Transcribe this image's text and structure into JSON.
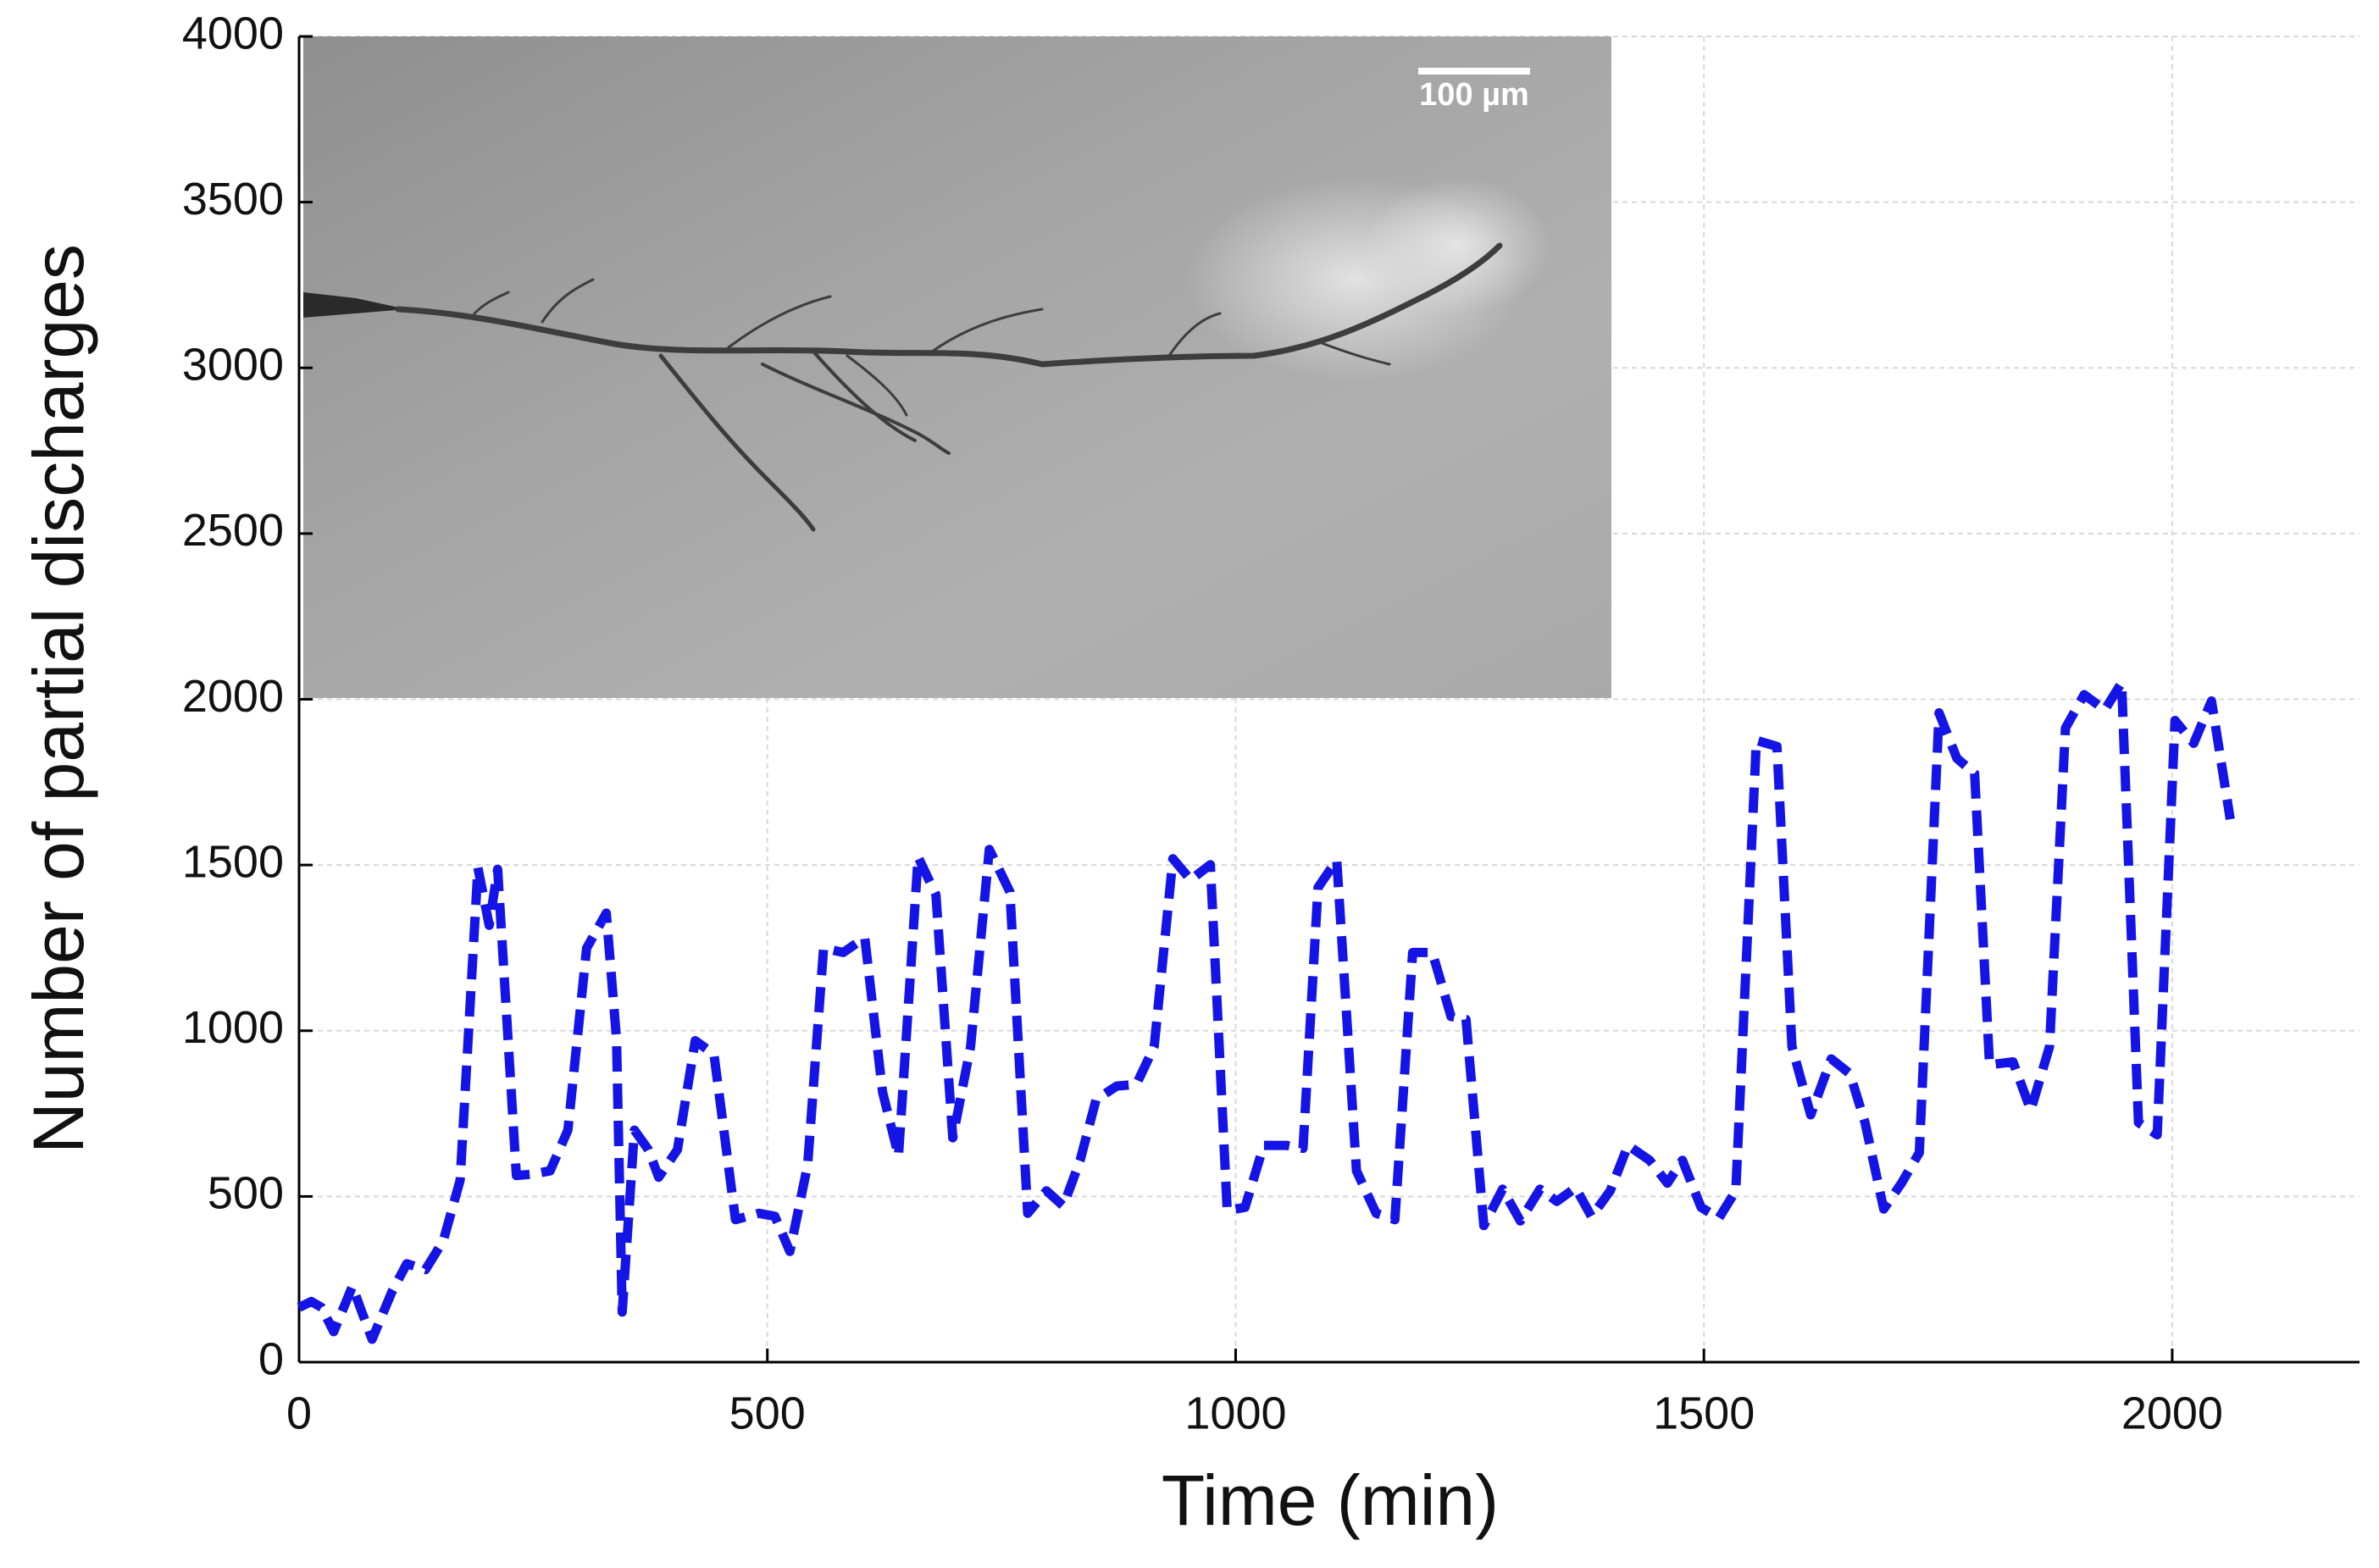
{
  "chart_data": {
    "type": "line",
    "x_label": "Time (min)",
    "y_label": "Number of partial discharges",
    "inset_scale_label": "100 µm",
    "color": "#1414e6",
    "line_style": "dashed",
    "grid": true,
    "xlim": [
      0,
      2200
    ],
    "ylim": [
      0,
      4000
    ],
    "xticks": [
      0,
      500,
      1000,
      1500,
      2000
    ],
    "yticks": [
      0,
      500,
      1000,
      1500,
      2000,
      2500,
      3000,
      3500,
      4000
    ],
    "x": [
      0,
      13,
      24,
      37,
      57,
      67,
      78,
      99,
      115,
      135,
      154,
      172,
      191,
      203,
      212,
      232,
      248,
      268,
      287,
      307,
      328,
      339,
      345,
      358,
      373,
      384,
      404,
      423,
      443,
      466,
      491,
      508,
      524,
      543,
      560,
      581,
      604,
      623,
      640,
      661,
      680,
      698,
      717,
      737,
      759,
      778,
      798,
      816,
      834,
      851,
      873,
      894,
      913,
      933,
      952,
      973,
      991,
      1010,
      1030,
      1054,
      1072,
      1088,
      1108,
      1129,
      1150,
      1170,
      1189,
      1210,
      1230,
      1246,
      1265,
      1285,
      1304,
      1325,
      1343,
      1363,
      1380,
      1400,
      1419,
      1442,
      1461,
      1477,
      1497,
      1516,
      1534,
      1556,
      1578,
      1594,
      1614,
      1636,
      1656,
      1672,
      1692,
      1711,
      1730,
      1751,
      1770,
      1789,
      1805,
      1830,
      1849,
      1869,
      1886,
      1906,
      1928,
      1946,
      1964,
      1984,
      2003,
      2023,
      2042,
      2062
    ],
    "values": [
      165,
      183,
      165,
      92,
      229,
      151,
      69,
      211,
      297,
      279,
      366,
      549,
      1492,
      1318,
      1487,
      563,
      567,
      577,
      700,
      1249,
      1355,
      975,
      151,
      700,
      641,
      558,
      641,
      970,
      929,
      430,
      449,
      440,
      334,
      595,
      1249,
      1236,
      1281,
      815,
      622,
      1524,
      1410,
      677,
      952,
      1547,
      1419,
      449,
      517,
      471,
      609,
      792,
      833,
      838,
      952,
      1519,
      1455,
      1501,
      458,
      467,
      654,
      654,
      645,
      1432,
      1515,
      577,
      449,
      430,
      1236,
      1236,
      1043,
      1034,
      412,
      522,
      426,
      522,
      485,
      526,
      439,
      517,
      654,
      609,
      540,
      609,
      467,
      435,
      517,
      1876,
      1858,
      952,
      746,
      915,
      870,
      723,
      462,
      540,
      632,
      1959,
      1822,
      1776,
      897,
      906,
      760,
      952,
      1913,
      2014,
      1968,
      2050,
      723,
      686,
      1936,
      1867,
      1995,
      1638
    ]
  }
}
